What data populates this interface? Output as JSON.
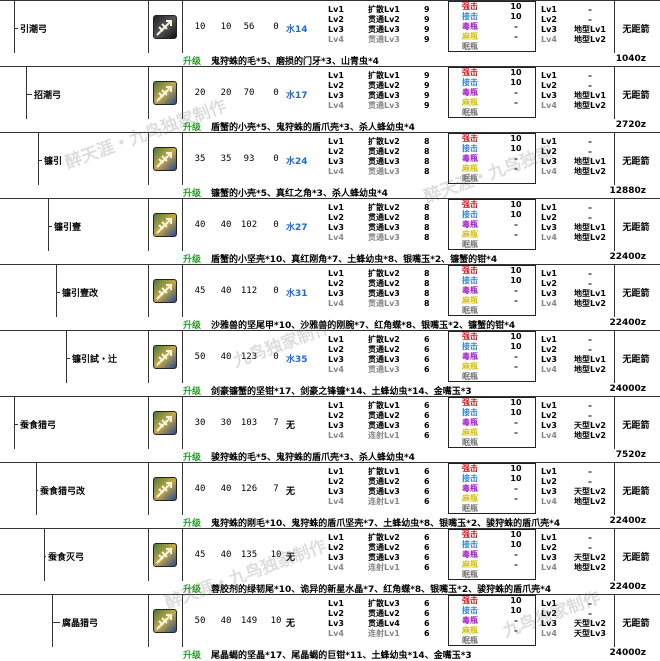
{
  "labels": {
    "upgrade": "升级",
    "element_water": "水",
    "element_none": "无",
    "ending": "无距箭"
  },
  "weapons": [
    {
      "name": "引潮弓",
      "atk": "10",
      "aff": "10",
      "def": "56",
      "slot": "0",
      "elem": "水14",
      "lv": [
        "Lv1",
        "Lv2",
        "Lv3",
        "Lv4"
      ],
      "shot": [
        "扩散Lv1",
        "贯通Lv2",
        "贯通Lv3",
        "贯通Lv3"
      ],
      "num": [
        "9",
        "9",
        "9",
        "9"
      ],
      "coat": [
        "强击",
        "接击",
        "毒瓶",
        "麻瓶",
        "眠瓶"
      ],
      "cn": [
        "10",
        "10",
        "–",
        "–",
        ""
      ],
      "st_lv": [
        "Lv1",
        "Lv2",
        "Lv3",
        "Lv4"
      ],
      "st": [
        "–",
        "–",
        "地型Lv1",
        "地型Lv2"
      ],
      "materials": "鬼狩蛛的毛*5、磨损的门牙*3、山青虫*4",
      "cost": "1040z"
    },
    {
      "name": "招潮弓",
      "atk": "20",
      "aff": "20",
      "def": "70",
      "slot": "0",
      "elem": "水17",
      "lv": [
        "Lv1",
        "Lv2",
        "Lv3",
        "Lv4"
      ],
      "shot": [
        "扩散Lv1",
        "贯通Lv2",
        "贯通Lv3",
        "贯通Lv3"
      ],
      "num": [
        "9",
        "9",
        "9",
        "9"
      ],
      "coat": [
        "强击",
        "接击",
        "毒瓶",
        "麻瓶",
        "眠瓶"
      ],
      "cn": [
        "10",
        "10",
        "–",
        "–",
        ""
      ],
      "st_lv": [
        "Lv1",
        "Lv2",
        "Lv3",
        "Lv4"
      ],
      "st": [
        "–",
        "–",
        "地型Lv1",
        "地型Lv2"
      ],
      "materials": "盾蟹的小壳*5、鬼狩蛛的盾爪壳*3、杀人蜂幼虫*4",
      "cost": "2720z"
    },
    {
      "name": "镰引",
      "atk": "35",
      "aff": "35",
      "def": "93",
      "slot": "0",
      "elem": "水24",
      "lv": [
        "Lv1",
        "Lv2",
        "Lv3",
        "Lv4"
      ],
      "shot": [
        "扩散Lv2",
        "贯通Lv2",
        "贯通Lv3",
        "贯通Lv3"
      ],
      "num": [
        "8",
        "8",
        "8",
        "8"
      ],
      "coat": [
        "强击",
        "接击",
        "毒瓶",
        "麻瓶",
        "眠瓶"
      ],
      "cn": [
        "10",
        "10",
        "–",
        "–",
        ""
      ],
      "st_lv": [
        "Lv1",
        "Lv2",
        "Lv3",
        "Lv4"
      ],
      "st": [
        "–",
        "–",
        "地型Lv1",
        "地型Lv2"
      ],
      "materials": "镰蟹的小壳*5、真红之角*3、杀人蜂幼虫*4",
      "cost": "12880z"
    },
    {
      "name": "镰引壹",
      "atk": "40",
      "aff": "40",
      "def": "102",
      "slot": "0",
      "elem": "水27",
      "lv": [
        "Lv1",
        "Lv2",
        "Lv3",
        "Lv4"
      ],
      "shot": [
        "扩散Lv2",
        "贯通Lv2",
        "贯通Lv3",
        "贯通Lv3"
      ],
      "num": [
        "8",
        "8",
        "8",
        "8"
      ],
      "coat": [
        "强击",
        "接击",
        "毒瓶",
        "麻瓶",
        "眠瓶"
      ],
      "cn": [
        "10",
        "10",
        "–",
        "–",
        ""
      ],
      "st_lv": [
        "Lv1",
        "Lv2",
        "Lv3",
        "Lv4"
      ],
      "st": [
        "–",
        "–",
        "地型Lv1",
        "地型Lv2"
      ],
      "materials": "盾蟹的小坚壳*10、真红刚角*7、土蜂幼虫*8、银嘴玉*2、镰蟹的钳*4",
      "cost": "22400z"
    },
    {
      "name": "镰引壹改",
      "atk": "45",
      "aff": "40",
      "def": "112",
      "slot": "0",
      "elem": "水31",
      "lv": [
        "Lv1",
        "Lv2",
        "Lv3",
        "Lv4"
      ],
      "shot": [
        "扩散Lv2",
        "贯通Lv2",
        "贯通Lv3",
        "贯通Lv3"
      ],
      "num": [
        "8",
        "8",
        "8",
        "8"
      ],
      "coat": [
        "强击",
        "接击",
        "毒瓶",
        "麻瓶",
        "眠瓶"
      ],
      "cn": [
        "10",
        "10",
        "–",
        "–",
        ""
      ],
      "st_lv": [
        "Lv1",
        "Lv2",
        "Lv3",
        "Lv4"
      ],
      "st": [
        "–",
        "–",
        "地型Lv1",
        "地型Lv2"
      ],
      "materials": "沙雅兽的坚尾甲*10、沙雅兽的刚腕*7、红角蝶*8、银嘴玉*2、镰蟹的钳*4",
      "cost": "22400z"
    },
    {
      "name": "镰引試・辻",
      "atk": "50",
      "aff": "40",
      "def": "123",
      "slot": "0",
      "elem": "水35",
      "lv": [
        "Lv1",
        "Lv2",
        "Lv3",
        "Lv4"
      ],
      "shot": [
        "扩散Lv2",
        "贯通Lv2",
        "贯通Lv3",
        "贯通Lv3"
      ],
      "num": [
        "6",
        "6",
        "6",
        "6"
      ],
      "coat": [
        "强击",
        "接击",
        "毒瓶",
        "麻瓶",
        "眠瓶"
      ],
      "cn": [
        "10",
        "10",
        "–",
        "–",
        ""
      ],
      "st_lv": [
        "Lv1",
        "Lv2",
        "Lv3",
        "Lv4"
      ],
      "st": [
        "–",
        "–",
        "地型Lv1",
        "地型Lv2"
      ],
      "materials": "剑豪镰蟹的坚钳*17、剑豪之锋镰*14、土蜂幼虫*14、金嘴玉*3",
      "cost": "24000z"
    },
    {
      "name": "蚕食猎弓",
      "atk": "30",
      "aff": "30",
      "def": "103",
      "slot": "7",
      "elem": "无",
      "lv": [
        "Lv1",
        "Lv2",
        "Lv3",
        "Lv4"
      ],
      "shot": [
        "扩散Lv1",
        "贯通Lv2",
        "贯通Lv3",
        "连射Lv1"
      ],
      "num": [
        "6",
        "6",
        "6",
        "6"
      ],
      "coat": [
        "强击",
        "接击",
        "毒瓶",
        "麻瓶",
        "眠瓶"
      ],
      "cn": [
        "10",
        "10",
        "–",
        "–",
        ""
      ],
      "st_lv": [
        "Lv1",
        "Lv2",
        "Lv3",
        "Lv4"
      ],
      "st": [
        "–",
        "–",
        "天型Lv2",
        "地型Lv2"
      ],
      "materials": "骏狩蛛的毛*5、鬼狩蛛的盾爪壳*3、杀人蜂幼虫*4",
      "cost": "7520z"
    },
    {
      "name": "蚕食猎弓改",
      "atk": "40",
      "aff": "40",
      "def": "126",
      "slot": "7",
      "elem": "无",
      "lv": [
        "Lv1",
        "Lv2",
        "Lv3",
        "Lv4"
      ],
      "shot": [
        "扩散Lv1",
        "贯通Lv2",
        "贯通Lv3",
        "连射Lv1"
      ],
      "num": [
        "6",
        "6",
        "6",
        "6"
      ],
      "coat": [
        "强击",
        "接击",
        "毒瓶",
        "麻瓶",
        "眠瓶"
      ],
      "cn": [
        "10",
        "10",
        "–",
        "–",
        ""
      ],
      "st_lv": [
        "Lv1",
        "Lv2",
        "Lv3",
        "Lv4"
      ],
      "st": [
        "–",
        "–",
        "天型Lv2",
        "地型Lv2"
      ],
      "materials": "鬼狩蛛的刚毛*10、鬼狩蛛的盾爪坚壳*7、土蜂幼虫*8、银嘴玉*2、骏狩蛛的盾爪壳*4",
      "cost": "22400z"
    },
    {
      "name": "蚕食灭弓",
      "atk": "45",
      "aff": "40",
      "def": "135",
      "slot": "10",
      "elem": "无",
      "lv": [
        "Lv1",
        "Lv2",
        "Lv3",
        "Lv4"
      ],
      "shot": [
        "扩散Lv2",
        "贯通Lv2",
        "贯通Lv3",
        "连射Lv1"
      ],
      "num": [
        "6",
        "6",
        "6",
        "6"
      ],
      "coat": [
        "强击",
        "接击",
        "毒瓶",
        "麻瓶",
        "眠瓶"
      ],
      "cn": [
        "10",
        "10",
        "–",
        "–",
        ""
      ],
      "st_lv": [
        "Lv1",
        "Lv2",
        "Lv3",
        "Lv4"
      ],
      "st": [
        "–",
        "–",
        "天型Lv2",
        "地型Lv2"
      ],
      "materials": "蓉胶剂的绿韧尾*10、诡异的新星水晶*7、红角蝶*8、银嘴玉*2、骏狩蛛的盾爪壳*4",
      "cost": "22400z"
    },
    {
      "name": "腐晶猎弓",
      "atk": "50",
      "aff": "40",
      "def": "149",
      "slot": "10",
      "elem": "无",
      "lv": [
        "Lv1",
        "Lv2",
        "Lv3",
        "Lv4"
      ],
      "shot": [
        "扩散Lv3",
        "贯通Lv2",
        "贯通Lv4",
        "连射Lv1"
      ],
      "num": [
        "6",
        "6",
        "6",
        "6"
      ],
      "coat": [
        "强击",
        "接击",
        "毒瓶",
        "麻瓶",
        "眠瓶"
      ],
      "cn": [
        "10",
        "10",
        "–",
        "–",
        ""
      ],
      "st_lv": [
        "Lv1",
        "Lv2",
        "Lv3",
        "Lv4"
      ],
      "st": [
        "–",
        "–",
        "天型Lv2",
        "天型Lv3"
      ],
      "materials": "尾晶蝎的坚晶*17、尾晶蝎的巨钳*11、土蜂幼虫*14、金嘴玉*3",
      "cost": "24000z"
    }
  ],
  "watermark": [
    "醉天涯・九鸟独家制作",
    "九鸟独家制作",
    "醉天涯・九鸟独家"
  ]
}
